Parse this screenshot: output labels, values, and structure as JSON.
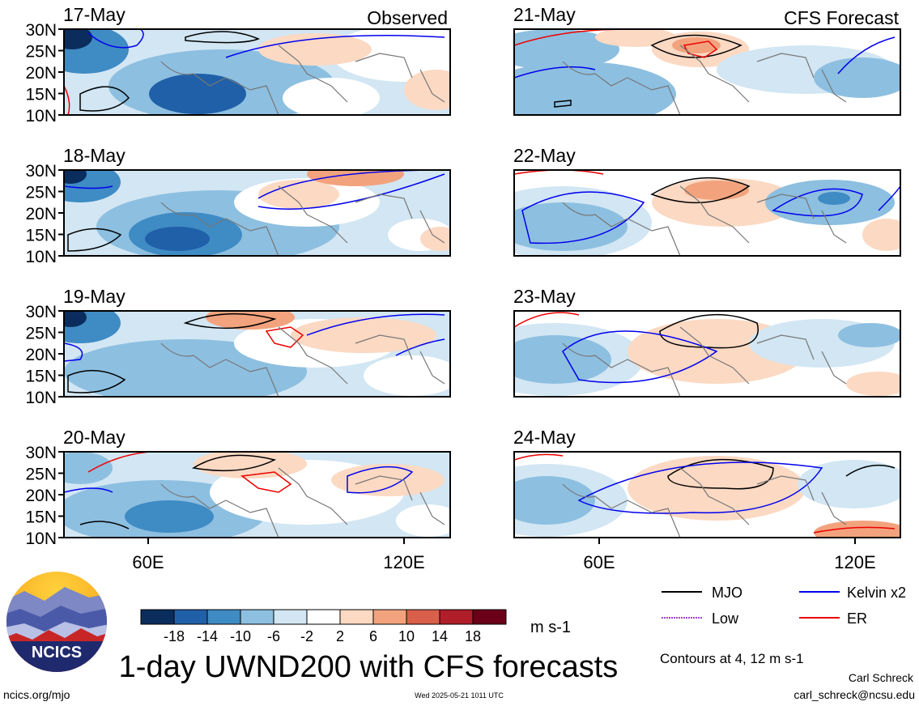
{
  "header": {
    "left_title": "Observed",
    "right_title": "CFS Forecast"
  },
  "panels": {
    "observed": [
      {
        "date": "17-May"
      },
      {
        "date": "18-May"
      },
      {
        "date": "19-May"
      },
      {
        "date": "20-May"
      }
    ],
    "forecast": [
      {
        "date": "21-May"
      },
      {
        "date": "22-May"
      },
      {
        "date": "23-May"
      },
      {
        "date": "24-May"
      }
    ]
  },
  "axes": {
    "lat_labels": [
      "30N",
      "25N",
      "20N",
      "15N",
      "10N"
    ],
    "lon_labels": [
      "60E",
      "120E"
    ]
  },
  "colorbar": {
    "labels": [
      "-18",
      "-14",
      "-10",
      "-6",
      "-2",
      "2",
      "6",
      "10",
      "14",
      "18"
    ],
    "colors": [
      "#0b2d5e",
      "#2060a8",
      "#3f8bc4",
      "#8dbfe0",
      "#d2e6f3",
      "#ffffff",
      "#fbd9c3",
      "#f2a37d",
      "#d95f4a",
      "#b01e2a",
      "#6b0018"
    ],
    "unit": "m s-1"
  },
  "legend": {
    "items": [
      {
        "label": "MJO",
        "color": "#000000"
      },
      {
        "label": "Kelvin x2",
        "color": "#0000ee"
      },
      {
        "label": "Low",
        "color": "#a040d8"
      },
      {
        "label": "ER",
        "color": "#ee0000"
      }
    ],
    "note": "Contours at 4, 12 m s-1"
  },
  "footer": {
    "main_title": "1-day UWND200 with CFS forecasts",
    "logo_text": "NCICS",
    "url": "ncics.org/mjo",
    "timestamp": "Wed 2025-05-21 1011 UTC",
    "author": "Carl Schreck",
    "email": "carl_schreck@ncsu.edu"
  }
}
